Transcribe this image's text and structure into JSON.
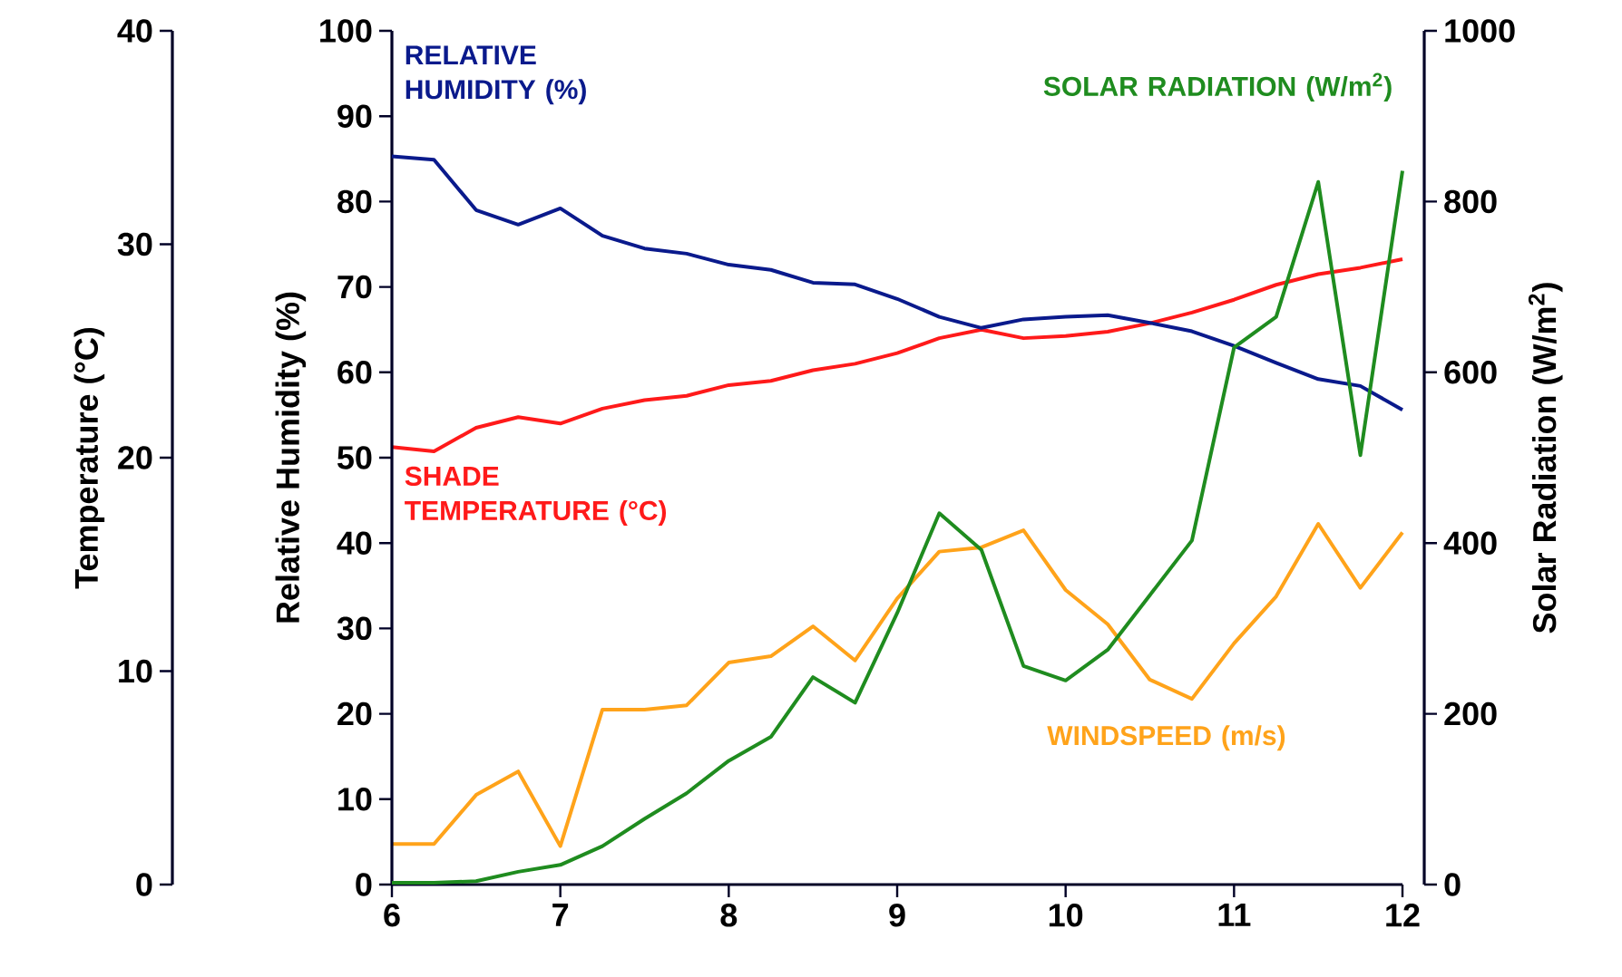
{
  "chart_data": {
    "type": "line",
    "x": [
      6,
      6.25,
      6.5,
      6.75,
      7,
      7.25,
      7.5,
      7.75,
      8,
      8.25,
      8.5,
      8.75,
      9,
      9.25,
      9.5,
      9.75,
      10,
      10.25,
      10.5,
      10.75,
      11,
      11.25,
      11.5,
      11.75,
      12
    ],
    "xlim": [
      6,
      12
    ],
    "xticks": [
      6,
      7,
      8,
      9,
      10,
      11,
      12
    ],
    "ylim": [
      0,
      100
    ],
    "yticks": [
      0,
      10,
      20,
      30,
      40,
      50,
      60,
      70,
      80,
      90,
      100
    ],
    "ylabel": "Relative Humidity (%)",
    "y2lim": [
      0,
      1000
    ],
    "y2ticks": [
      0,
      200,
      400,
      600,
      800,
      1000
    ],
    "y2label": "Solar Radiation (W/m$^{2}$)",
    "y3lim": [
      0,
      40
    ],
    "y3ticks": [
      0,
      10,
      20,
      30,
      40
    ],
    "y3label": "Temperature (°C)",
    "legend": false,
    "grid": false,
    "marker": "none",
    "line_style": "solid",
    "series": [
      {
        "name": "RELATIVE HUMIDITY (%)",
        "color": "#0a1a8c",
        "axis": "y",
        "values": [
          85.3,
          84.9,
          79,
          77.3,
          79.2,
          76,
          74.5,
          73.9,
          72.6,
          72,
          70.5,
          70.3,
          68.6,
          66.5,
          65.2,
          66.2,
          66.5,
          66.7,
          65.8,
          64.8,
          63.1,
          61.1,
          59.2,
          58.4,
          55.6
        ]
      },
      {
        "name": "SHADE TEMPERATURE (°C)",
        "color": "#ff1a1a",
        "axis": "y3",
        "values": [
          20.5,
          20.3,
          21.4,
          21.9,
          21.6,
          22.3,
          22.7,
          22.9,
          23.4,
          23.6,
          24.1,
          24.4,
          24.9,
          25.6,
          26,
          25.6,
          25.7,
          25.9,
          26.3,
          26.8,
          27.4,
          28.1,
          28.6,
          28.9,
          29.3
        ]
      },
      {
        "name": "SOLAR RADIATION (W/m$^{2}$)",
        "color": "#1f8c1f",
        "axis": "y2",
        "values": [
          2,
          2,
          4,
          15,
          23,
          45,
          77,
          107,
          145,
          173,
          243,
          213,
          318,
          435,
          392,
          256,
          239,
          275,
          339,
          403,
          629,
          665,
          823,
          503,
          836
        ]
      },
      {
        "name": "WINDSPEED (m/s)",
        "color": "#ffa31a",
        "axis": "y3",
        "values": [
          1.9,
          1.9,
          4.2,
          5.3,
          1.8,
          8.2,
          8.2,
          8.4,
          10.4,
          10.7,
          12.1,
          10.5,
          13.4,
          15.6,
          15.8,
          16.6,
          13.8,
          12.2,
          9.6,
          8.7,
          11.3,
          13.5,
          16.9,
          13.9,
          16.5
        ]
      }
    ]
  }
}
